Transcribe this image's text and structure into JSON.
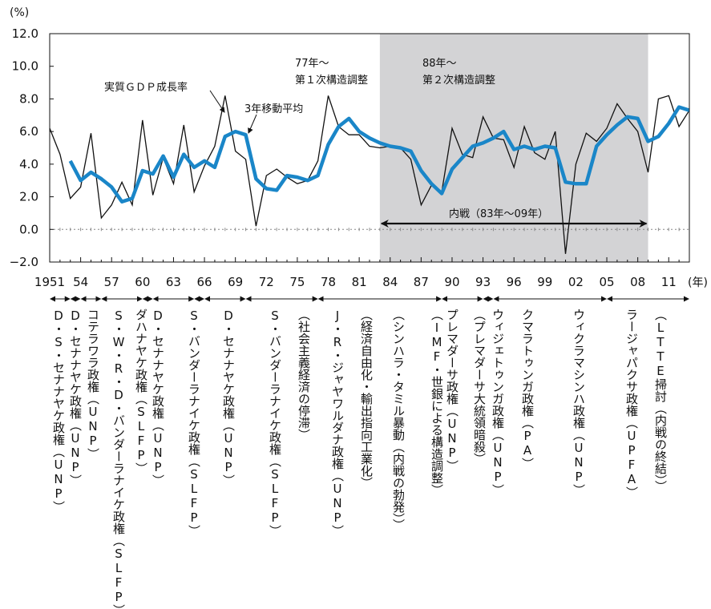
{
  "chart_data": {
    "type": "line",
    "title": "",
    "xlabel": "",
    "ylabel": "",
    "y_unit": "(%)",
    "x_unit": "(年)",
    "xlim": [
      1951,
      2013
    ],
    "ylim": [
      -2.0,
      12.0
    ],
    "y_ticks": [
      -2.0,
      0.0,
      2.0,
      4.0,
      6.0,
      8.0,
      10.0,
      12.0
    ],
    "y_tick_labels": [
      "−2.0",
      "0.0",
      "2.0",
      "4.0",
      "6.0",
      "8.0",
      "10.0",
      "12.0"
    ],
    "x_ticks": [
      1951,
      1954,
      1957,
      1960,
      1963,
      1966,
      1969,
      1972,
      1975,
      1978,
      1981,
      1984,
      1987,
      1990,
      1993,
      1996,
      1999,
      2002,
      2005,
      2008,
      2011
    ],
    "x_tick_labels": [
      "1951",
      "54",
      "57",
      "60",
      "63",
      "66",
      "69",
      "72",
      "75",
      "78",
      "81",
      "84",
      "87",
      "90",
      "93",
      "96",
      "99",
      "02",
      "05",
      "08",
      "11"
    ],
    "grid": false,
    "series": [
      {
        "name": "実質ＧＤＰ成長率",
        "color": "#111111",
        "x": [
          1951,
          1952,
          1953,
          1954,
          1955,
          1956,
          1957,
          1958,
          1959,
          1960,
          1961,
          1962,
          1963,
          1964,
          1965,
          1966,
          1967,
          1968,
          1969,
          1970,
          1971,
          1972,
          1973,
          1974,
          1975,
          1976,
          1977,
          1978,
          1979,
          1980,
          1981,
          1982,
          1983,
          1984,
          1985,
          1986,
          1987,
          1988,
          1989,
          1990,
          1991,
          1992,
          1993,
          1994,
          1995,
          1996,
          1997,
          1998,
          1999,
          2000,
          2001,
          2002,
          2003,
          2004,
          2005,
          2006,
          2007,
          2008,
          2009,
          2010,
          2011,
          2012,
          2013
        ],
        "y": [
          6.2,
          4.6,
          1.9,
          2.6,
          5.9,
          0.7,
          1.5,
          2.9,
          1.5,
          6.7,
          2.1,
          4.4,
          2.8,
          6.4,
          2.3,
          3.9,
          5.1,
          8.2,
          4.8,
          4.3,
          0.2,
          3.3,
          3.7,
          3.2,
          2.8,
          3.0,
          4.2,
          8.2,
          6.3,
          5.8,
          5.8,
          5.1,
          5.0,
          5.1,
          5.0,
          4.3,
          1.5,
          2.7,
          2.3,
          6.2,
          4.6,
          4.4,
          6.9,
          5.6,
          5.5,
          3.8,
          6.3,
          4.7,
          4.3,
          6.0,
          -1.5,
          4.0,
          5.9,
          5.4,
          6.2,
          7.7,
          6.8,
          6.0,
          3.5,
          8.0,
          8.2,
          6.3,
          7.3
        ]
      },
      {
        "name": "3年移動平均",
        "color": "#1a86c8",
        "x": [
          1953,
          1954,
          1955,
          1956,
          1957,
          1958,
          1959,
          1960,
          1961,
          1962,
          1963,
          1964,
          1965,
          1966,
          1967,
          1968,
          1969,
          1970,
          1971,
          1972,
          1973,
          1974,
          1975,
          1976,
          1977,
          1978,
          1979,
          1980,
          1981,
          1982,
          1983,
          1984,
          1985,
          1986,
          1987,
          1988,
          1989,
          1990,
          1991,
          1992,
          1993,
          1994,
          1995,
          1996,
          1997,
          1998,
          1999,
          2000,
          2001,
          2002,
          2003,
          2004,
          2005,
          2006,
          2007,
          2008,
          2009,
          2010,
          2011,
          2012,
          2013
        ],
        "y": [
          4.2,
          3.0,
          3.5,
          3.1,
          2.6,
          1.7,
          1.9,
          3.6,
          3.4,
          4.5,
          3.2,
          4.6,
          3.8,
          4.2,
          3.8,
          5.7,
          6.0,
          5.8,
          3.1,
          2.5,
          2.4,
          3.3,
          3.2,
          3.0,
          3.3,
          5.2,
          6.3,
          6.8,
          6.0,
          5.6,
          5.3,
          5.1,
          5.0,
          4.8,
          3.6,
          2.8,
          2.2,
          3.7,
          4.4,
          5.1,
          5.3,
          5.6,
          6.0,
          4.9,
          5.1,
          4.9,
          5.1,
          5.0,
          2.9,
          2.8,
          2.8,
          5.1,
          5.8,
          6.4,
          6.9,
          6.8,
          5.4,
          5.7,
          6.5,
          7.5,
          7.3
        ]
      }
    ],
    "shaded_region": {
      "from": 1983,
      "to": 2009
    },
    "annotations": [
      {
        "text": "実質ＧＤＰ成長率"
      },
      {
        "text": "3年移動平均"
      },
      {
        "text": "77年～"
      },
      {
        "text": "第１次構造調整"
      },
      {
        "text": "88年～"
      },
      {
        "text": "第２次構造調整"
      },
      {
        "text": "内戦（83年～09年）"
      }
    ],
    "periods": [
      {
        "from": 1951,
        "to": 1953,
        "label": "D・S・セナナヤケ政権（UNP）"
      },
      {
        "from": 1953,
        "to": 1954,
        "label": "D・セナナヤケ政権（UNP）"
      },
      {
        "from": 1954,
        "to": 1956,
        "label": "コテラワラ政権（UNP）"
      },
      {
        "from": 1956,
        "to": 1960,
        "label": "S・W・R・D・バンダーラナイケ政権（SLFP）"
      },
      {
        "from": 1960,
        "to": 1961,
        "label": "ダハナヤケ政権（SLFP）"
      },
      {
        "from": 1961,
        "to": 1965,
        "label": "D・セナナヤケ政権（UNP）"
      },
      {
        "from": 1965,
        "to": 1966,
        "label": "S・バンダーラナイケ政権（SLFP）"
      },
      {
        "from": 1966,
        "to": 1970,
        "label": "D・セナナヤケ政権（UNP）"
      },
      {
        "from": 1970,
        "to": 1977,
        "label": "S・バンダーラナイケ政権（SLFP）"
      },
      {
        "from": 1970,
        "to": 1977,
        "label": "（社会主義経済の停滞）"
      },
      {
        "from": 1977,
        "to": 1989,
        "label": "J・R・ジャヤワルダナ政権（UNP）"
      },
      {
        "from": 1977,
        "to": 1989,
        "label": "（経済自由化・輸出指向工業化）"
      },
      {
        "from": 1977,
        "to": 1989,
        "label": "（シンハラ・タミル暴動（内戦の勃発））"
      },
      {
        "from": 1989,
        "to": 1993,
        "label": "プレマダーサ政権（UNP）"
      },
      {
        "from": 1989,
        "to": 1993,
        "label": "（IMF・世銀による構造調整）"
      },
      {
        "from": 1993,
        "to": 1994,
        "label": "ウィジェトゥンガ政権（UNP）"
      },
      {
        "from": 1993,
        "to": 1994,
        "label": "（プレマダーサ大統領暗殺）"
      },
      {
        "from": 1994,
        "to": 2005,
        "label": "クマラトゥンガ政権（PA）"
      },
      {
        "from": 1994,
        "to": 2005,
        "label": "ウィクラマシンハ政権（UNP）"
      },
      {
        "from": 2005,
        "to": 2013,
        "label": "ラージャパクサ政権（UPFA）"
      },
      {
        "from": 2005,
        "to": 2013,
        "label": "（LTTE掃討（内戦の終結））"
      }
    ]
  }
}
